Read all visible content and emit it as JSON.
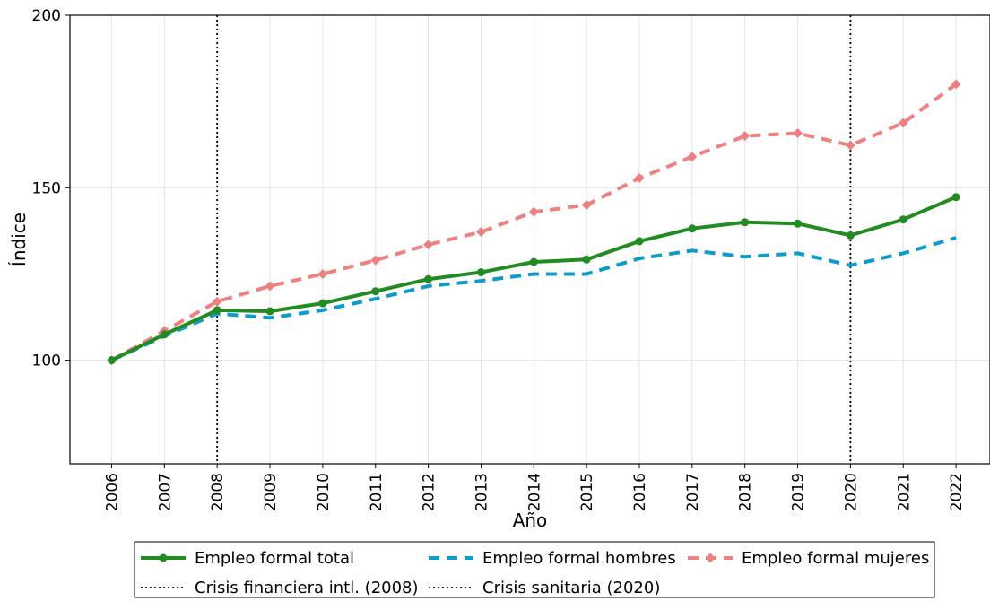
{
  "chart_data": {
    "type": "line",
    "xlabel": "Año",
    "ylabel": "Índice",
    "ylim": [
      70,
      200
    ],
    "yticks": [
      100,
      150,
      200
    ],
    "x": [
      "2006",
      "2007",
      "2008",
      "2009",
      "2010",
      "2011",
      "2012",
      "2013",
      "2014",
      "2015",
      "2016",
      "2017",
      "2018",
      "2019",
      "2020",
      "2021",
      "2022"
    ],
    "grid": true,
    "legend_position": "bottom",
    "series": [
      {
        "name": "Empleo formal total",
        "color": "#228B22",
        "style": "solid",
        "marker": "circle",
        "values": [
          100,
          107.5,
          114.5,
          114.2,
          116.5,
          120,
          123.5,
          125.5,
          128.5,
          129.2,
          134.5,
          138.2,
          140,
          139.6,
          136.2,
          140.8,
          147.3
        ]
      },
      {
        "name": "Empleo formal hombres",
        "color": "#0E9BCB",
        "style": "dashed",
        "marker": "none",
        "values": [
          100,
          107,
          113.5,
          112.3,
          114.5,
          117.8,
          121.5,
          123,
          125,
          125,
          129.5,
          131.8,
          130,
          131,
          127.5,
          131,
          135.5
        ]
      },
      {
        "name": "Empleo formal mujeres",
        "color": "#EF8080",
        "style": "dashed",
        "marker": "diamond",
        "values": [
          100,
          108.5,
          117,
          121.5,
          125,
          129,
          133.5,
          137.2,
          143,
          145,
          152.8,
          159,
          165,
          165.8,
          162.3,
          168.8,
          180
        ]
      }
    ],
    "vlines": [
      {
        "x": "2008",
        "name": "Crisis financiera intl. (2008)",
        "style": "dotted",
        "color": "#000000"
      },
      {
        "x": "2020",
        "name": "Crisis sanitaria (2020)",
        "style": "dotted",
        "color": "#000000"
      }
    ]
  }
}
